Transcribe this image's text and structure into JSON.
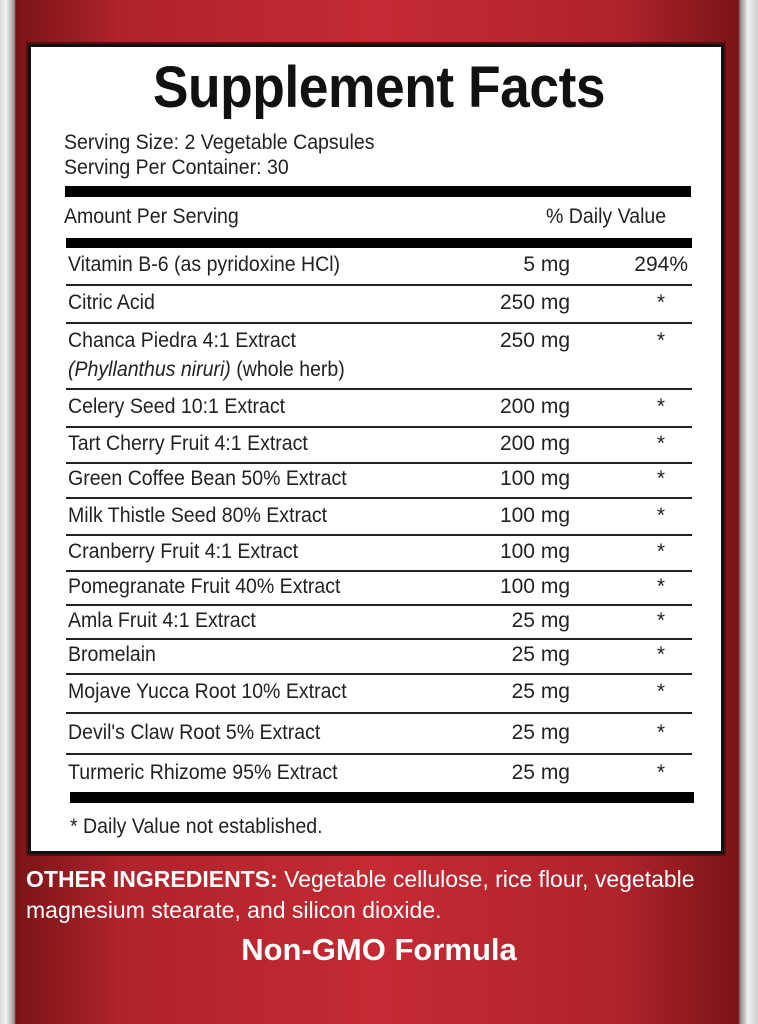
{
  "title": "Supplement Facts",
  "serving_size": "Serving Size: 2 Vegetable Capsules",
  "servings_per_container": "Serving Per Container: 30",
  "header": {
    "amount": "Amount Per Serving",
    "dv": "% Daily Value"
  },
  "rows": [
    {
      "name": "Vitamin B-6 (as pyridoxine HCl)",
      "amount": "5 mg",
      "dv": "294%"
    },
    {
      "name": "Citric Acid",
      "amount": "250 mg",
      "dv": "*"
    },
    {
      "name": "Chanca Piedra 4:1 Extract",
      "name_latin": "(Phyllanthus niruri)",
      "name_suffix": " (whole herb)",
      "amount": "250 mg",
      "dv": "*"
    },
    {
      "name": "Celery Seed 10:1 Extract",
      "amount": "200 mg",
      "dv": "*"
    },
    {
      "name": "Tart Cherry Fruit 4:1 Extract",
      "amount": "200 mg",
      "dv": "*"
    },
    {
      "name": "Green Coffee Bean 50% Extract",
      "amount": "100 mg",
      "dv": "*"
    },
    {
      "name": "Milk Thistle Seed 80% Extract",
      "amount": "100 mg",
      "dv": "*"
    },
    {
      "name": "Cranberry Fruit 4:1 Extract",
      "amount": "100 mg",
      "dv": "*"
    },
    {
      "name": "Pomegranate Fruit 40% Extract",
      "amount": "100 mg",
      "dv": "*"
    },
    {
      "name": "Amla Fruit 4:1 Extract",
      "amount": "25 mg",
      "dv": "*"
    },
    {
      "name": "Bromelain",
      "amount": "25 mg",
      "dv": "*"
    },
    {
      "name": "Mojave Yucca Root 10% Extract",
      "amount": "25 mg",
      "dv": "*"
    },
    {
      "name": "Devil's Claw Root 5% Extract",
      "amount": "25 mg",
      "dv": "*"
    },
    {
      "name": "Turmeric Rhizome 95% Extract",
      "amount": "25 mg",
      "dv": "*"
    }
  ],
  "footnote": "* Daily Value not established.",
  "other_ingredients": {
    "label": "OTHER INGREDIENTS:",
    "text": " Vegetable cellulose, rice flour, vegetable magnesium stearate, and silicon dioxide."
  },
  "badge": "Non-GMO Formula",
  "colors": {
    "label_red": "#c42a33",
    "text": "#222222"
  }
}
